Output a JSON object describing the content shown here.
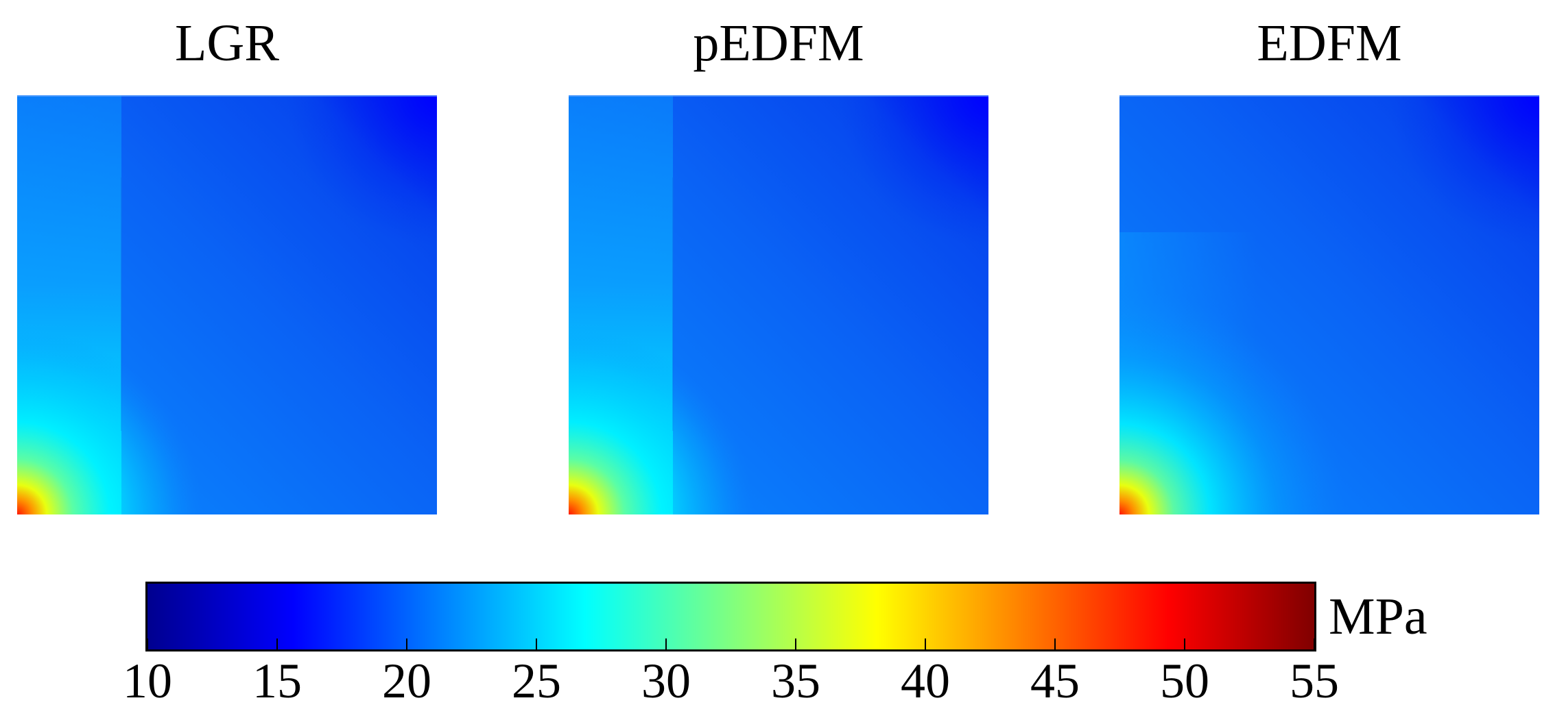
{
  "panels": [
    {
      "title": "LGR",
      "fracture_feature": "strong"
    },
    {
      "title": "pEDFM",
      "fracture_feature": "strong"
    },
    {
      "title": "EDFM",
      "fracture_feature": "none"
    }
  ],
  "colorbar": {
    "unit": "MPa",
    "colormap": "jet",
    "min": 10,
    "max": 55,
    "ticks": [
      "10",
      "15",
      "20",
      "25",
      "30",
      "35",
      "40",
      "45",
      "50",
      "55"
    ],
    "colors": [
      "#00008f",
      "#0000ff",
      "#00ffff",
      "#ffff00",
      "#ff0000",
      "#800000"
    ]
  },
  "chart_data": {
    "type": "heatmap",
    "title": "",
    "panels": [
      "LGR",
      "pEDFM",
      "EDFM"
    ],
    "colorbar_label": "MPa",
    "value_range": [
      10,
      55
    ],
    "colorbar_ticks": [
      10,
      15,
      20,
      25,
      30,
      35,
      40,
      45,
      50,
      55
    ],
    "approximate_field": {
      "top_right_corner": 17,
      "upper_region": 20,
      "lower_left_band": 27,
      "bottom_left_corner": 47
    }
  }
}
